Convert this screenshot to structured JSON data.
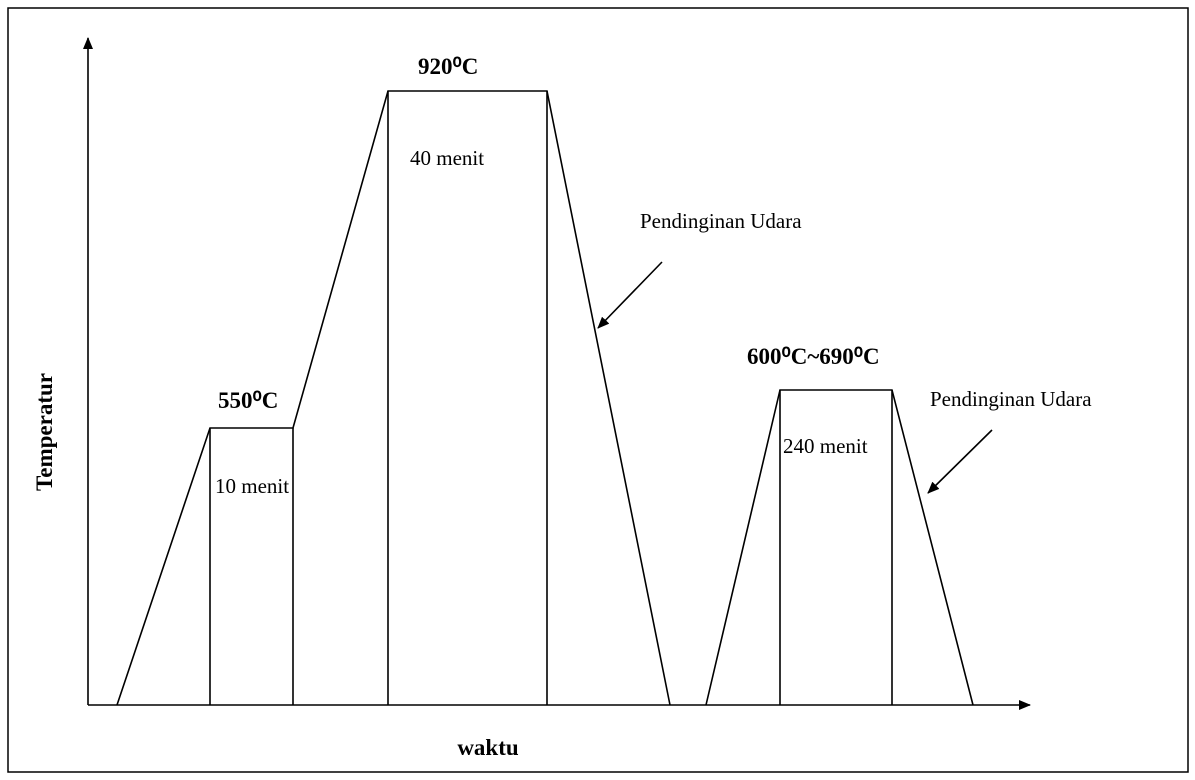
{
  "axes": {
    "y_label": "Temperatur",
    "x_label": "waktu"
  },
  "stages": [
    {
      "temperature": "550⁰C",
      "duration": "10 menit"
    },
    {
      "temperature": "920⁰C",
      "duration": "40 menit"
    },
    {
      "temperature": "600⁰C~690⁰C",
      "duration": "240 menit"
    }
  ],
  "annotations": [
    "Pendinginan Udara",
    "Pendinginan Udara"
  ]
}
